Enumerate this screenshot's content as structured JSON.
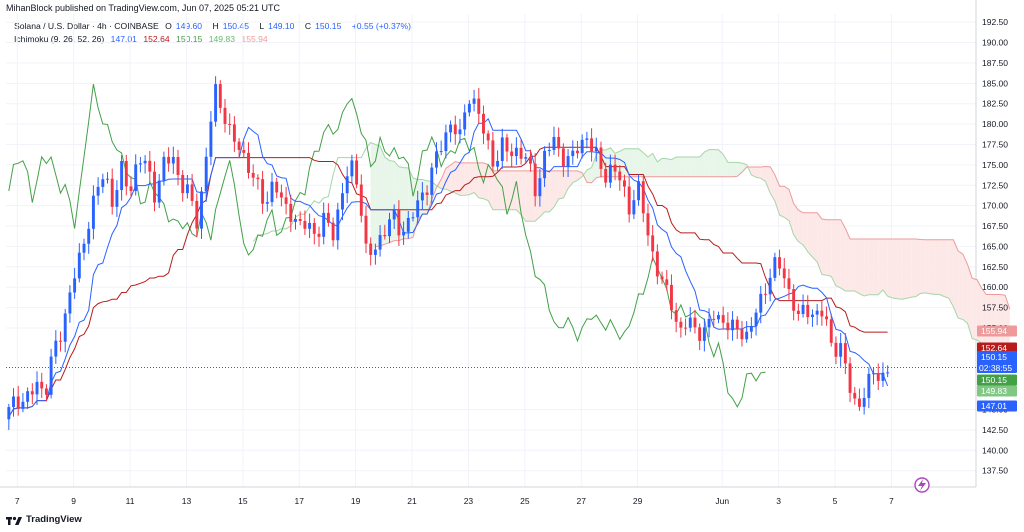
{
  "header": {
    "published_by": "MihanBlock published on TradingView.com, Jun 07, 2025 05:21 UTC"
  },
  "legend": {
    "symbol": "Solana / U.S. Dollar · 4h · COINBASE",
    "o_label": "O",
    "o_value": "149.60",
    "h_label": "H",
    "h_value": "150.45",
    "l_label": "L",
    "l_value": "149.10",
    "c_label": "C",
    "c_value": "150.15",
    "change": "+0.55 (+0.37%)",
    "ichimoku_label": "Ichimoku (9, 26, 52, 26)",
    "ichimoku_values": [
      "147.01",
      "152.64",
      "150.15",
      "149.83",
      "155.94"
    ],
    "ichimoku_colors": [
      "#2962ff",
      "#b71c1c",
      "#43a047",
      "#66bb6a",
      "#ef9a9a"
    ]
  },
  "footer": {
    "brand": "TradingView"
  },
  "colors": {
    "up": "#2962ff",
    "down": "#f23645",
    "tenkan": "#2962ff",
    "kijun": "#b71c1c",
    "chikou": "#43a047",
    "span_a": "#a5d6a7",
    "span_b": "#ef9a9a",
    "cloud_bull": "#e8f5e9",
    "cloud_bear": "#fde8e8",
    "price_line": "#2962ff"
  },
  "chart_data": {
    "type": "candlestick",
    "title": "Solana / U.S. Dollar · 4h · COINBASE",
    "xlabel": "",
    "ylabel": "",
    "ylim": [
      135.5,
      193.5
    ],
    "y_ticks": [
      "192.50",
      "190.00",
      "187.50",
      "185.00",
      "182.50",
      "180.00",
      "177.50",
      "175.00",
      "172.50",
      "170.00",
      "167.50",
      "165.00",
      "162.50",
      "160.00",
      "157.50",
      "155.00",
      "145.00",
      "142.50",
      "140.00",
      "137.50"
    ],
    "x_ticks": [
      {
        "day": 7,
        "label": "7"
      },
      {
        "day": 9,
        "label": "9"
      },
      {
        "day": 11,
        "label": "11"
      },
      {
        "day": 13,
        "label": "13"
      },
      {
        "day": 15,
        "label": "15"
      },
      {
        "day": 17,
        "label": "17"
      },
      {
        "day": 19,
        "label": "19"
      },
      {
        "day": 21,
        "label": "21"
      },
      {
        "day": 23,
        "label": "23"
      },
      {
        "day": 25,
        "label": "25"
      },
      {
        "day": 27,
        "label": "27"
      },
      {
        "day": 29,
        "label": "29"
      },
      {
        "day": 32,
        "label": "Jun"
      },
      {
        "day": 34,
        "label": "3"
      },
      {
        "day": 36,
        "label": "5"
      },
      {
        "day": 38,
        "label": "7"
      }
    ],
    "current_price": 150.15,
    "countdown": "02:38:55",
    "badges": [
      {
        "name": "span-b",
        "value": "155.94",
        "color": "#ef9a9a"
      },
      {
        "name": "kijun",
        "value": "152.64",
        "color": "#b71c1c"
      },
      {
        "name": "close",
        "value": "150.15",
        "color": "#2962ff"
      },
      {
        "name": "tenkan-chikou",
        "value": "150.15",
        "color": "#43a047"
      },
      {
        "name": "span-a",
        "value": "149.83",
        "color": "#81c784"
      },
      {
        "name": "tenkan",
        "value": "147.01",
        "color": "#2962ff"
      }
    ],
    "price_path": [
      [
        6.5,
        143.5
      ],
      [
        7.0,
        146.5
      ],
      [
        7.3,
        146.0
      ],
      [
        7.7,
        148.0
      ],
      [
        8.0,
        147.5
      ],
      [
        8.3,
        152.0
      ],
      [
        8.6,
        155.0
      ],
      [
        8.9,
        160.0
      ],
      [
        9.2,
        163.0
      ],
      [
        9.5,
        168.0
      ],
      [
        9.8,
        171.5
      ],
      [
        10.1,
        174.0
      ],
      [
        10.4,
        170.5
      ],
      [
        10.7,
        174.0
      ],
      [
        11.0,
        172.0
      ],
      [
        11.3,
        176.0
      ],
      [
        11.6,
        174.5
      ],
      [
        11.9,
        171.5
      ],
      [
        12.2,
        175.0
      ],
      [
        12.5,
        176.0
      ],
      [
        12.8,
        173.0
      ],
      [
        13.1,
        171.0
      ],
      [
        13.4,
        168.0
      ],
      [
        13.7,
        176.0
      ],
      [
        14.0,
        184.0
      ],
      [
        14.3,
        182.0
      ],
      [
        14.6,
        178.0
      ],
      [
        14.9,
        177.0
      ],
      [
        15.2,
        175.0
      ],
      [
        15.5,
        172.0
      ],
      [
        15.8,
        170.5
      ],
      [
        16.1,
        173.0
      ],
      [
        16.4,
        170.0
      ],
      [
        16.7,
        169.5
      ],
      [
        17.0,
        167.0
      ],
      [
        17.3,
        168.0
      ],
      [
        17.6,
        166.5
      ],
      [
        17.9,
        168.0
      ],
      [
        18.2,
        167.0
      ],
      [
        18.5,
        171.0
      ],
      [
        18.8,
        175.0
      ],
      [
        19.1,
        173.0
      ],
      [
        19.4,
        163.0
      ],
      [
        19.7,
        165.0
      ],
      [
        20.0,
        167.0
      ],
      [
        20.3,
        168.5
      ],
      [
        20.6,
        167.0
      ],
      [
        20.9,
        168.0
      ],
      [
        21.2,
        170.0
      ],
      [
        21.5,
        172.5
      ],
      [
        21.8,
        175.0
      ],
      [
        22.1,
        178.0
      ],
      [
        22.4,
        180.5
      ],
      [
        22.7,
        178.0
      ],
      [
        23.0,
        184.0
      ],
      [
        23.3,
        182.0
      ],
      [
        23.6,
        178.0
      ],
      [
        23.9,
        175.5
      ],
      [
        24.2,
        177.0
      ],
      [
        24.5,
        176.5
      ],
      [
        24.8,
        177.0
      ],
      [
        25.1,
        175.0
      ],
      [
        25.4,
        172.0
      ],
      [
        25.7,
        176.0
      ],
      [
        26.0,
        178.0
      ],
      [
        26.3,
        176.5
      ],
      [
        26.6,
        175.0
      ],
      [
        26.9,
        177.5
      ],
      [
        27.2,
        178.5
      ],
      [
        27.5,
        176.0
      ],
      [
        27.8,
        174.0
      ],
      [
        28.1,
        174.5
      ],
      [
        28.4,
        173.0
      ],
      [
        28.7,
        170.0
      ],
      [
        29.0,
        172.0
      ],
      [
        29.3,
        168.0
      ],
      [
        29.6,
        163.0
      ],
      [
        29.9,
        160.0
      ],
      [
        30.2,
        158.5
      ],
      [
        30.5,
        154.0
      ],
      [
        30.8,
        156.0
      ],
      [
        31.1,
        155.0
      ],
      [
        31.4,
        154.0
      ],
      [
        31.7,
        157.0
      ],
      [
        32.0,
        156.0
      ],
      [
        32.3,
        154.5
      ],
      [
        32.6,
        155.5
      ],
      [
        32.9,
        153.5
      ],
      [
        33.2,
        157.0
      ],
      [
        33.5,
        160.0
      ],
      [
        33.8,
        162.0
      ],
      [
        34.1,
        163.0
      ],
      [
        34.4,
        159.0
      ],
      [
        34.7,
        156.0
      ],
      [
        35.0,
        158.0
      ],
      [
        35.3,
        156.0
      ],
      [
        35.6,
        157.0
      ],
      [
        35.9,
        153.0
      ],
      [
        36.2,
        152.0
      ],
      [
        36.5,
        148.5
      ],
      [
        36.8,
        145.0
      ],
      [
        37.1,
        147.0
      ],
      [
        37.4,
        150.5
      ],
      [
        37.7,
        148.5
      ],
      [
        38.0,
        150.15
      ]
    ]
  }
}
